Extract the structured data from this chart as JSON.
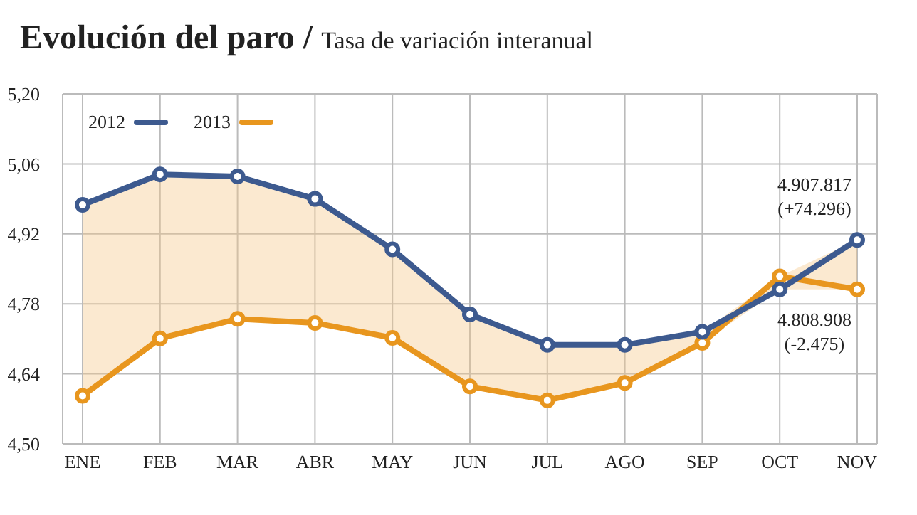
{
  "chart_data": {
    "type": "line",
    "title": "Evolución del paro /",
    "subtitle": "Tasa de variación interanual",
    "categories": [
      "ENE",
      "FEB",
      "MAR",
      "ABR",
      "MAY",
      "JUN",
      "JUL",
      "AGO",
      "SEP",
      "OCT",
      "NOV"
    ],
    "series": [
      {
        "name": "2012",
        "color": "#3d5a8f",
        "values": [
          4.978,
          5.039,
          5.035,
          4.99,
          4.889,
          4.759,
          4.698,
          4.698,
          4.724,
          4.809,
          4.908
        ],
        "lower": [
          4.596,
          4.711,
          4.75,
          4.742,
          4.712,
          4.615,
          4.587,
          4.622,
          4.702,
          4.809,
          4.809
        ],
        "upper": [
          4.978,
          5.039,
          5.035,
          4.99,
          4.889,
          4.759,
          4.698,
          4.698,
          4.724,
          4.835,
          4.908
        ]
      },
      {
        "name": "2013",
        "color": "#e8961e",
        "values": [
          4.596,
          4.711,
          4.75,
          4.742,
          4.712,
          4.615,
          4.587,
          4.622,
          4.702,
          4.835,
          4.809
        ]
      }
    ],
    "ylim": [
      4.5,
      5.2
    ],
    "yticks": [
      {
        "value": 4.5,
        "label": "4,50"
      },
      {
        "value": 4.64,
        "label": "4,64"
      },
      {
        "value": 4.78,
        "label": "4,78"
      },
      {
        "value": 4.92,
        "label": "4,92"
      },
      {
        "value": 5.06,
        "label": "5,06"
      },
      {
        "value": 5.2,
        "label": "5,20"
      }
    ],
    "annotations": [
      {
        "text": "4.907.817\n(+74.296)",
        "x": "NOV",
        "y": 4.908
      },
      {
        "text": "4.808.908\n(-2.475)",
        "x": "NOV",
        "y": 4.809
      }
    ],
    "grid": true,
    "legend": "top left",
    "marker": "circle",
    "line_style": "solid"
  }
}
